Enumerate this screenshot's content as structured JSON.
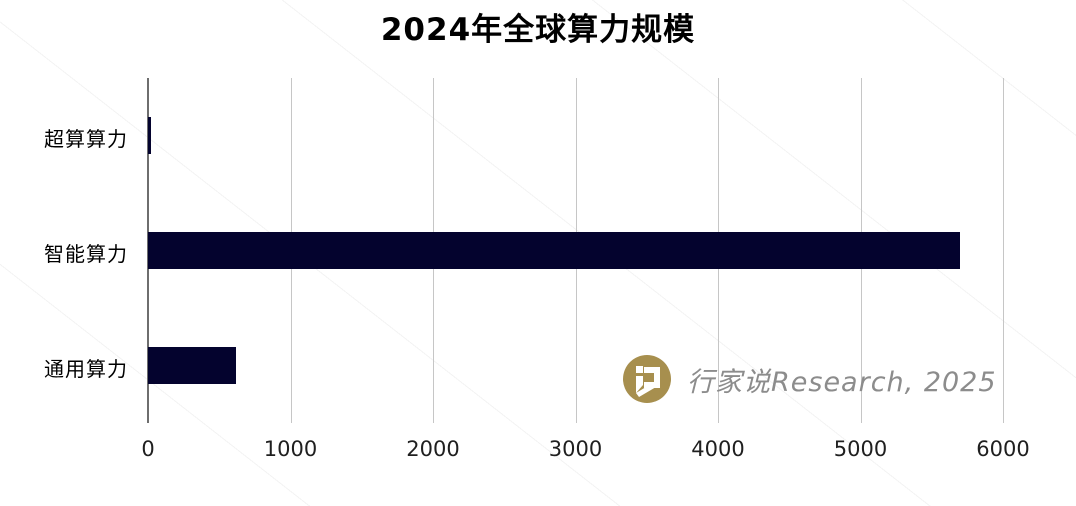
{
  "title": "2024年全球算力规模",
  "chart_data": {
    "type": "bar",
    "orientation": "horizontal",
    "title": "2024年全球算力规模",
    "categories": [
      "超算算力",
      "智能算力",
      "通用算力"
    ],
    "values": [
      20,
      5700,
      620
    ],
    "xlabel": "",
    "ylabel": "",
    "xlim": [
      0,
      6050
    ],
    "xticks": [
      "0",
      "1000",
      "2000",
      "3000",
      "4000",
      "5000",
      "6000"
    ],
    "xtick_values": [
      0,
      1000,
      2000,
      3000,
      4000,
      5000,
      6000
    ],
    "grid": true,
    "legend_position": "none",
    "bar_color": "#04032e",
    "gridline_color": "#c6c6c6",
    "axis_line_color": "#6e6e6e"
  },
  "watermark": {
    "logo_icon": "hangjiashuo-speech-bubble-logo",
    "logo_color": "#a78f4e",
    "text": "行家说Research, 2025",
    "text_color": "#8c8c8c"
  },
  "colors": {
    "background": "#ffffff",
    "title_color": "#000000",
    "tick_label_color": "#1f1f1f",
    "category_label_color": "#000000"
  }
}
